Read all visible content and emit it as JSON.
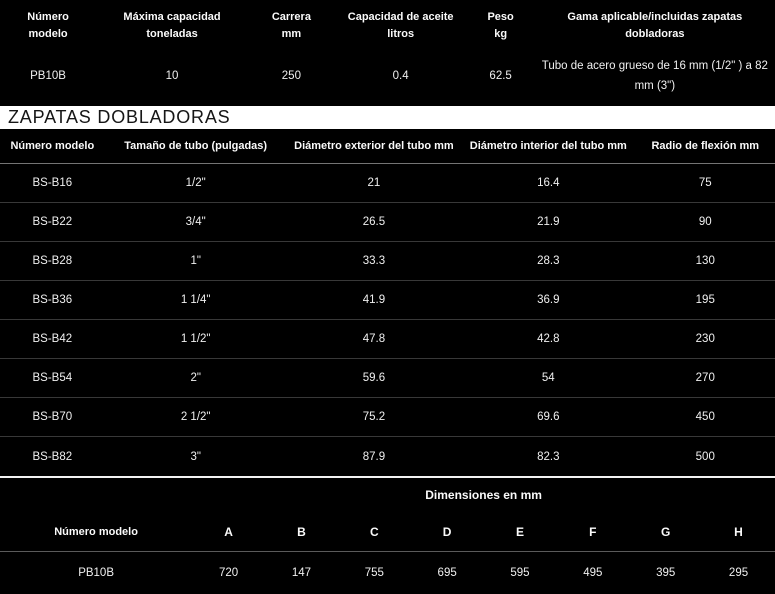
{
  "colors": {
    "background": "#000000",
    "text": "#f5f5f5",
    "band_background": "#ffffff",
    "band_text": "#161616",
    "row_separator": "#383838",
    "header_separator": "#747474",
    "section_line": "#f2f2f2"
  },
  "main_table": {
    "headers": [
      {
        "line1": "Número",
        "line2": "modelo"
      },
      {
        "line1": "Máxima capacidad",
        "line2": "toneladas"
      },
      {
        "line1": "Carrera",
        "line2": "mm"
      },
      {
        "line1": "Capacidad de aceite",
        "line2": "litros"
      },
      {
        "line1": "Peso",
        "line2": "kg"
      },
      {
        "line1": "Gama aplicable/incluidas zapatas",
        "line2": "dobladoras"
      }
    ],
    "values": {
      "model": "PB10B",
      "capacity": "10",
      "stroke": "250",
      "oil": "0.4",
      "weight": "62.5",
      "range": "Tubo de acero grueso de 16 mm (1/2\" ) a 82 mm (3\")"
    }
  },
  "section_heading": "ZAPATAS DOBLADORAS",
  "shoes_table": {
    "headers": [
      "Número modelo",
      "Tamaño de tubo (pulgadas)",
      "Diámetro exterior del tubo mm",
      "Diámetro interior del tubo mm",
      "Radio de flexión mm"
    ],
    "rows": [
      {
        "model": "BS-B16",
        "size": "1/2\"",
        "od": "21",
        "id": "16.4",
        "radius": "75"
      },
      {
        "model": "BS-B22",
        "size": "3/4\"",
        "od": "26.5",
        "id": "21.9",
        "radius": "90"
      },
      {
        "model": "BS-B28",
        "size": "1\"",
        "od": "33.3",
        "id": "28.3",
        "radius": "130"
      },
      {
        "model": "BS-B36",
        "size": "1 1/4\"",
        "od": "41.9",
        "id": "36.9",
        "radius": "195"
      },
      {
        "model": "BS-B42",
        "size": "1 1/2\"",
        "od": "47.8",
        "id": "42.8",
        "radius": "230"
      },
      {
        "model": "BS-B54",
        "size": "2\"",
        "od": "59.6",
        "id": "54",
        "radius": "270"
      },
      {
        "model": "BS-B70",
        "size": "2 1/2\"",
        "od": "75.2",
        "id": "69.6",
        "radius": "450"
      },
      {
        "model": "BS-B82",
        "size": "3\"",
        "od": "87.9",
        "id": "82.3",
        "radius": "500"
      }
    ]
  },
  "dimensions_table": {
    "title": "Dimensiones en mm",
    "model_header": "Número modelo",
    "dim_headers": [
      "A",
      "B",
      "C",
      "D",
      "E",
      "F",
      "G",
      "H"
    ],
    "row": {
      "model": "PB10B",
      "values": [
        "720",
        "147",
        "755",
        "695",
        "595",
        "495",
        "395",
        "295"
      ]
    }
  }
}
